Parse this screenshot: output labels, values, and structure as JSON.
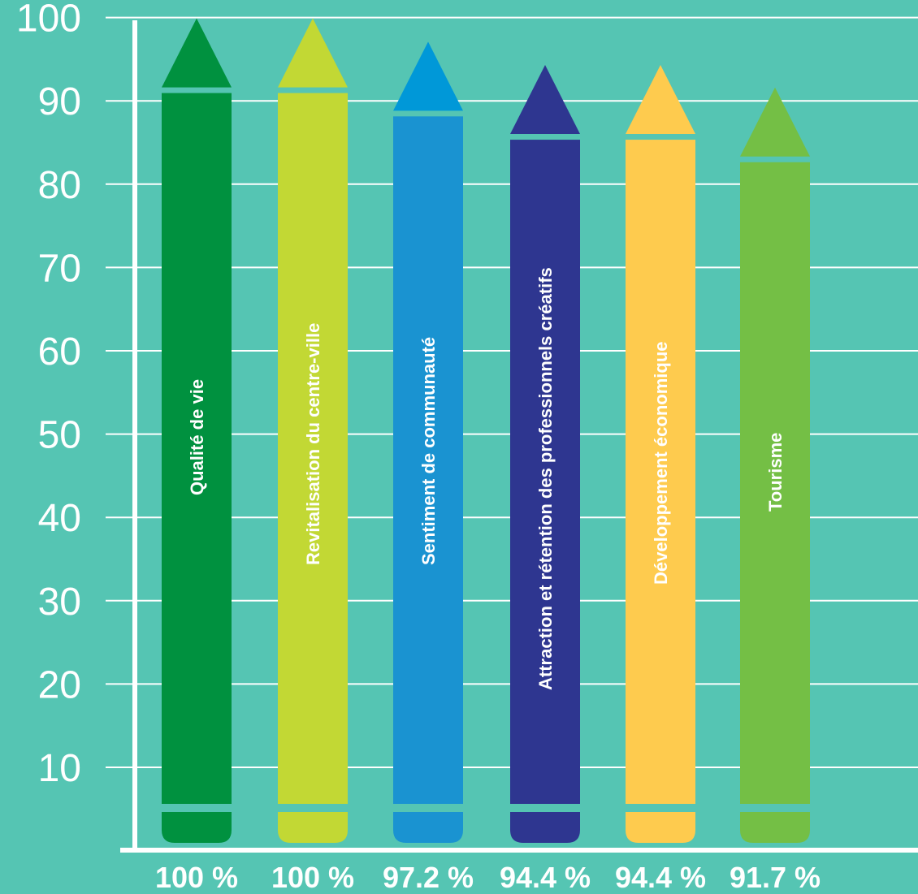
{
  "chart_data": {
    "type": "bar",
    "ylim": [
      0,
      100
    ],
    "yticks": [
      10,
      20,
      30,
      40,
      50,
      60,
      70,
      80,
      90,
      100
    ],
    "grid": true,
    "categories": [
      "Qualité de vie",
      "Revitalisation du centre-ville",
      "Sentiment de communauté",
      "Attraction et rétention des professionnels créatifs",
      "Développement économique",
      "Tourisme"
    ],
    "values": [
      100,
      100,
      97.2,
      94.4,
      94.4,
      91.7
    ],
    "value_labels": [
      "100 %",
      "100 %",
      "97.2 %",
      "94.4 %",
      "94.4 %",
      "91.7 %"
    ],
    "colors": [
      "#00913f",
      "#c2d834",
      "#1a93d1",
      "#2e3690",
      "#fecb4e",
      "#74bf45"
    ],
    "tip_colors": [
      "#00913f",
      "#c2d834",
      "#0098d8",
      "#2e3690",
      "#fecb4e",
      "#74bf45"
    ],
    "background": "#55c5b3"
  }
}
